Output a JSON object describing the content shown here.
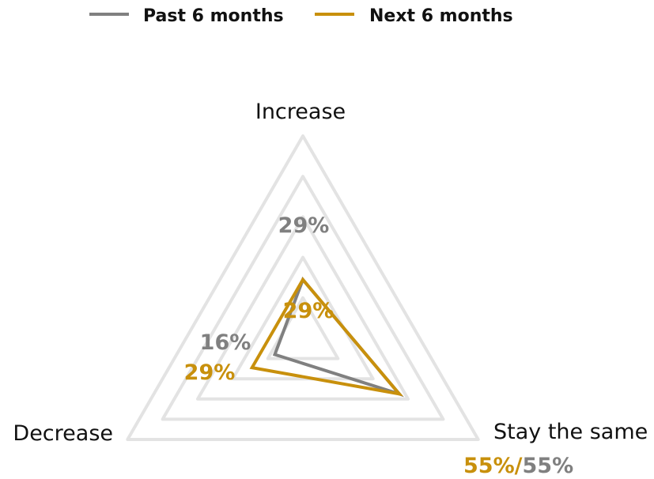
{
  "colors": {
    "past": "#808080",
    "next": "#c8900c",
    "grid": "#e3e3e3",
    "text": "#111111"
  },
  "chart_data": {
    "type": "radar",
    "axes": [
      "Increase",
      "Stay the same",
      "Decrease"
    ],
    "ylim": [
      0,
      100
    ],
    "grid_levels": 5,
    "legend_position": "top",
    "series": [
      {
        "name": "Past 6 months",
        "values": [
          29,
          55,
          16
        ]
      },
      {
        "name": "Next 6 months",
        "values": [
          29,
          55,
          29
        ]
      }
    ],
    "data_labels": {
      "past": [
        "29%",
        "55%",
        "16%"
      ],
      "next": [
        "29%",
        "55%/",
        "29%"
      ]
    }
  }
}
